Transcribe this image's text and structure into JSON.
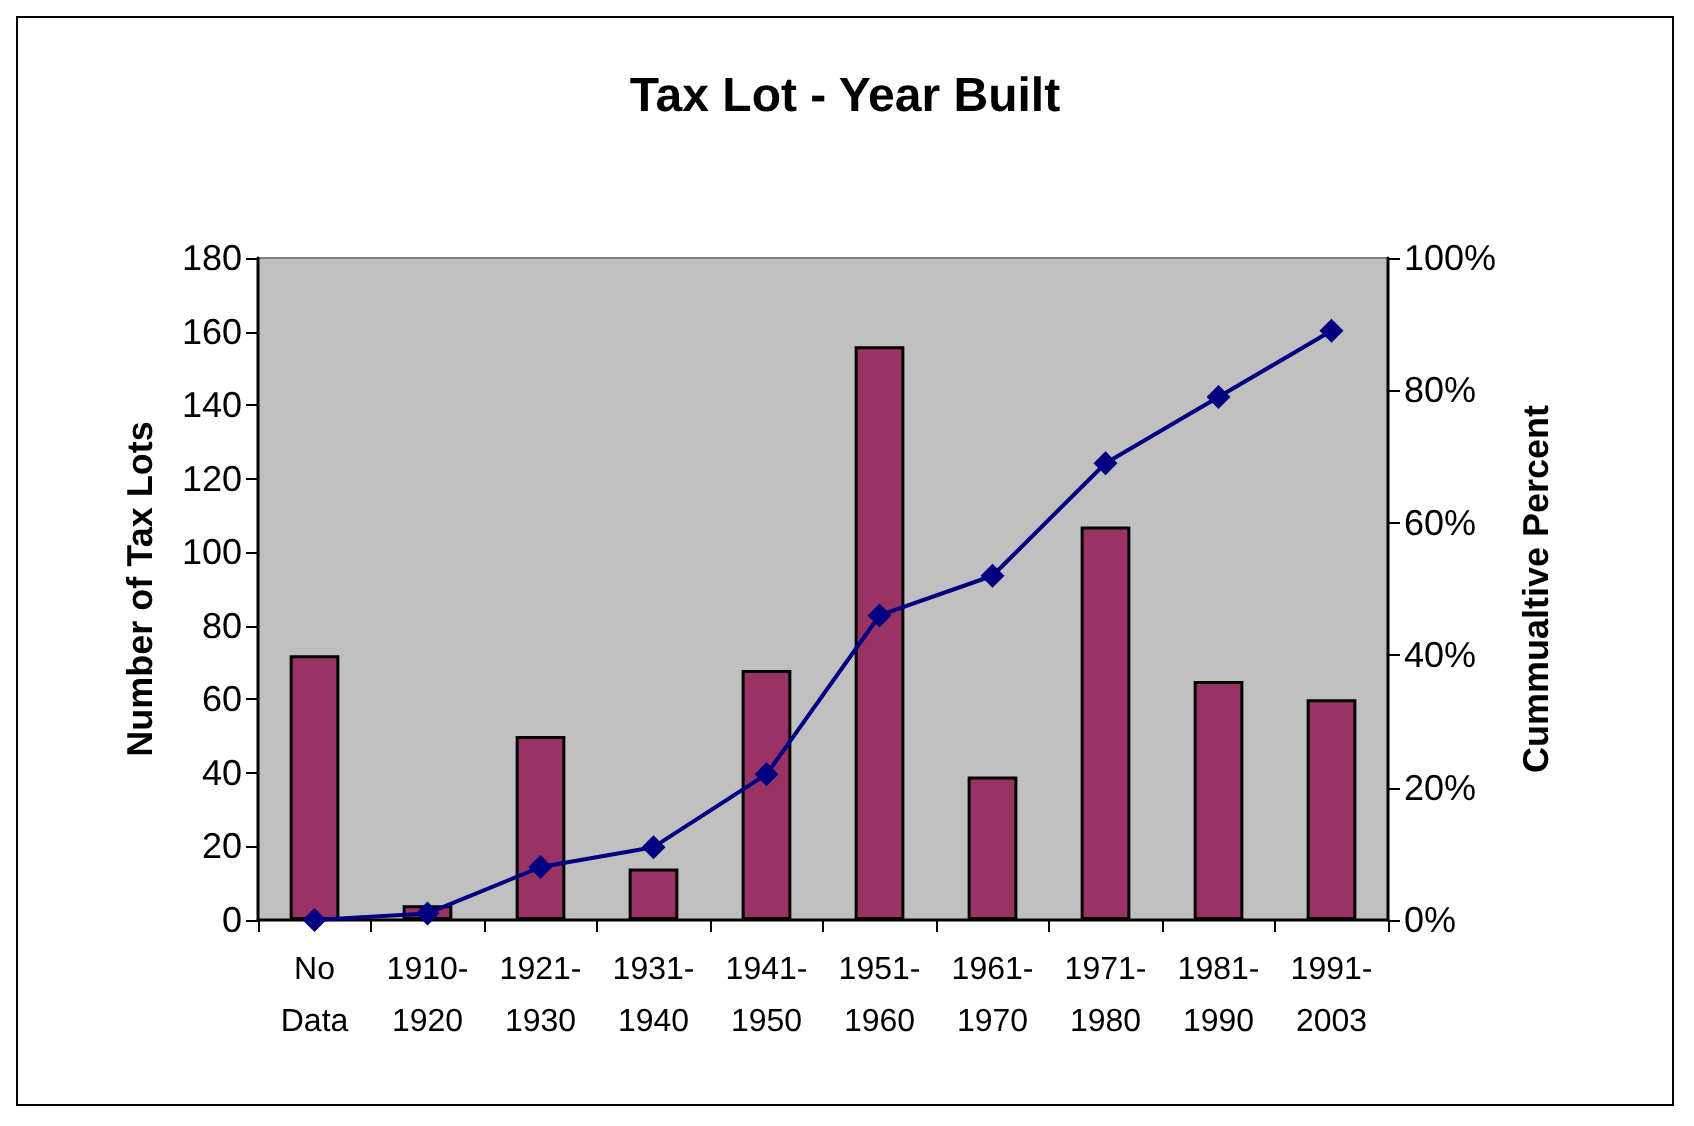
{
  "chart_data": {
    "type": "bar",
    "title": "Tax Lot - Year Built",
    "ylabel": "Number of Tax Lots",
    "y2label": "Cummualtive Percent",
    "categories": [
      "No\nData",
      "1910-\n1920",
      "1921-\n1930",
      "1931-\n1940",
      "1941-\n1950",
      "1951-\n1960",
      "1961-\n1970",
      "1971-\n1980",
      "1981-\n1990",
      "1991-\n2003"
    ],
    "series": [
      {
        "color": "#993366",
        "values": [
          72,
          4,
          50,
          14,
          68,
          156,
          39,
          107,
          65,
          60
        ]
      },
      {
        "type": "line",
        "axis": "y2",
        "color": "#000080",
        "marker": "diamond",
        "values": [
          0,
          1,
          8,
          11,
          22,
          46,
          52,
          69,
          79,
          89
        ]
      }
    ],
    "ylim": [
      0,
      180
    ],
    "yticks": [
      0,
      20,
      40,
      60,
      80,
      100,
      120,
      140,
      160,
      180
    ],
    "y2lim": [
      0,
      100
    ],
    "y2ticks": [
      {
        "value": 0,
        "label": "0%"
      },
      {
        "value": 20,
        "label": "20%"
      },
      {
        "value": 40,
        "label": "40%"
      },
      {
        "value": 60,
        "label": "60%"
      },
      {
        "value": 80,
        "label": "80%"
      },
      {
        "value": 100,
        "label": "100%"
      }
    ],
    "grid": false
  }
}
